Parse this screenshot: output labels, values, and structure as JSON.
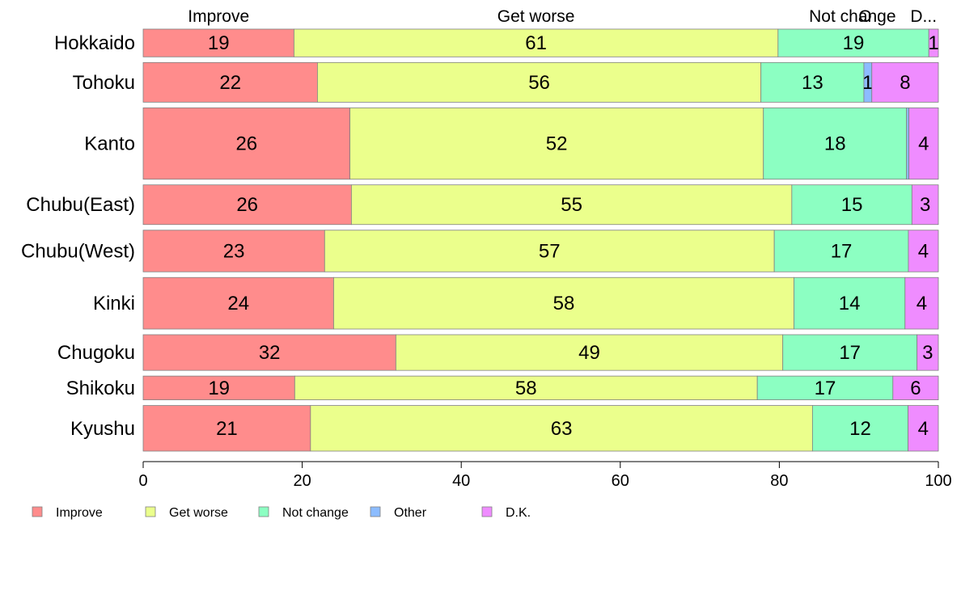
{
  "chart_data": {
    "type": "bar",
    "orientation": "horizontal",
    "stacked": true,
    "categories": [
      "Hokkaido",
      "Tohoku",
      "Kanto",
      "Chubu(East)",
      "Chubu(West)",
      "Kinki",
      "Chugoku",
      "Shikoku",
      "Kyushu"
    ],
    "category_weights": [
      0.7,
      1.0,
      1.8,
      1.0,
      1.05,
      1.3,
      0.9,
      0.6,
      1.15
    ],
    "series": [
      {
        "name": "Improve",
        "color": "#ff8c8c",
        "values": [
          19,
          22,
          26,
          26,
          23,
          24,
          32,
          19,
          21
        ],
        "labels": [
          "19",
          "22",
          "26",
          "26",
          "23",
          "24",
          "32",
          "19",
          "21"
        ]
      },
      {
        "name": "Get worse",
        "color": "#ebff8c",
        "values": [
          61,
          56,
          52,
          55,
          57,
          58,
          49,
          58,
          63
        ],
        "labels": [
          "61",
          "56",
          "52",
          "55",
          "57",
          "58",
          "49",
          "58",
          "63"
        ]
      },
      {
        "name": "Not change",
        "color": "#8cffc2",
        "values": [
          19,
          13,
          18,
          15,
          17,
          14,
          17,
          17,
          12
        ],
        "labels": [
          "19",
          "13",
          "18",
          "15",
          "17",
          "14",
          "17",
          "17",
          "12"
        ]
      },
      {
        "name": "Other",
        "color": "#8cbcff",
        "values": [
          0,
          1,
          0.3,
          0,
          0,
          0,
          0,
          0,
          0
        ],
        "labels": [
          "",
          "1",
          "",
          "",
          "",
          "",
          "",
          "",
          ""
        ]
      },
      {
        "name": "D.K.",
        "color": "#ef8cff",
        "values": [
          1.2,
          8.4,
          3.7,
          3.3,
          3.8,
          4.2,
          2.7,
          5.7,
          3.8
        ],
        "labels": [
          "1",
          "8",
          "4",
          "3",
          "4",
          "4",
          "3",
          "6",
          "4"
        ]
      }
    ],
    "top_labels": [
      "Improve",
      "Get worse",
      "Not change",
      "O",
      "D..."
    ],
    "xlim": [
      0,
      100
    ],
    "xticks": [
      "0",
      "20",
      "40",
      "60",
      "80",
      "100"
    ],
    "legend": {
      "position": "bottom-left",
      "entries": [
        "Improve",
        "Get worse",
        "Not change",
        "Other",
        "D.K."
      ]
    },
    "grid": false
  }
}
